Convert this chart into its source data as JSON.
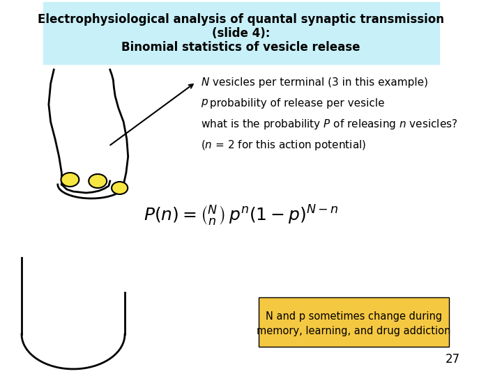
{
  "title_line1": "Electrophysiological analysis of quantal synaptic transmission",
  "title_line2": "(slide 4):",
  "title_line3": "Binomial statistics of vesicle release",
  "title_bg_color": "#c8f0f8",
  "bg_color": "#ffffff",
  "text1_italic": "N",
  "text1_normal": " vesicles per terminal (3 in this example)",
  "text2_italic": "p",
  "text2_normal": " probability of release per vesicle",
  "text3_normal": "what is the probability ",
  "text3_italic": "P",
  "text3_normal2": " of releasing ",
  "text3_italic2": "n",
  "text3_normal3": " vesicles?",
  "text4_italic": "n",
  "text4_normal": " = 2 for this action potential)",
  "formula": "P(n) = \\binom{N}{n} p^{n}(1-p)^{N-n}",
  "note_text": "N and p sometimes change during\nmemory, learning, and drug addiction",
  "note_bg": "#f5c842",
  "page_number": "27",
  "vesicle_color": "#f5e642",
  "line_color": "#000000"
}
